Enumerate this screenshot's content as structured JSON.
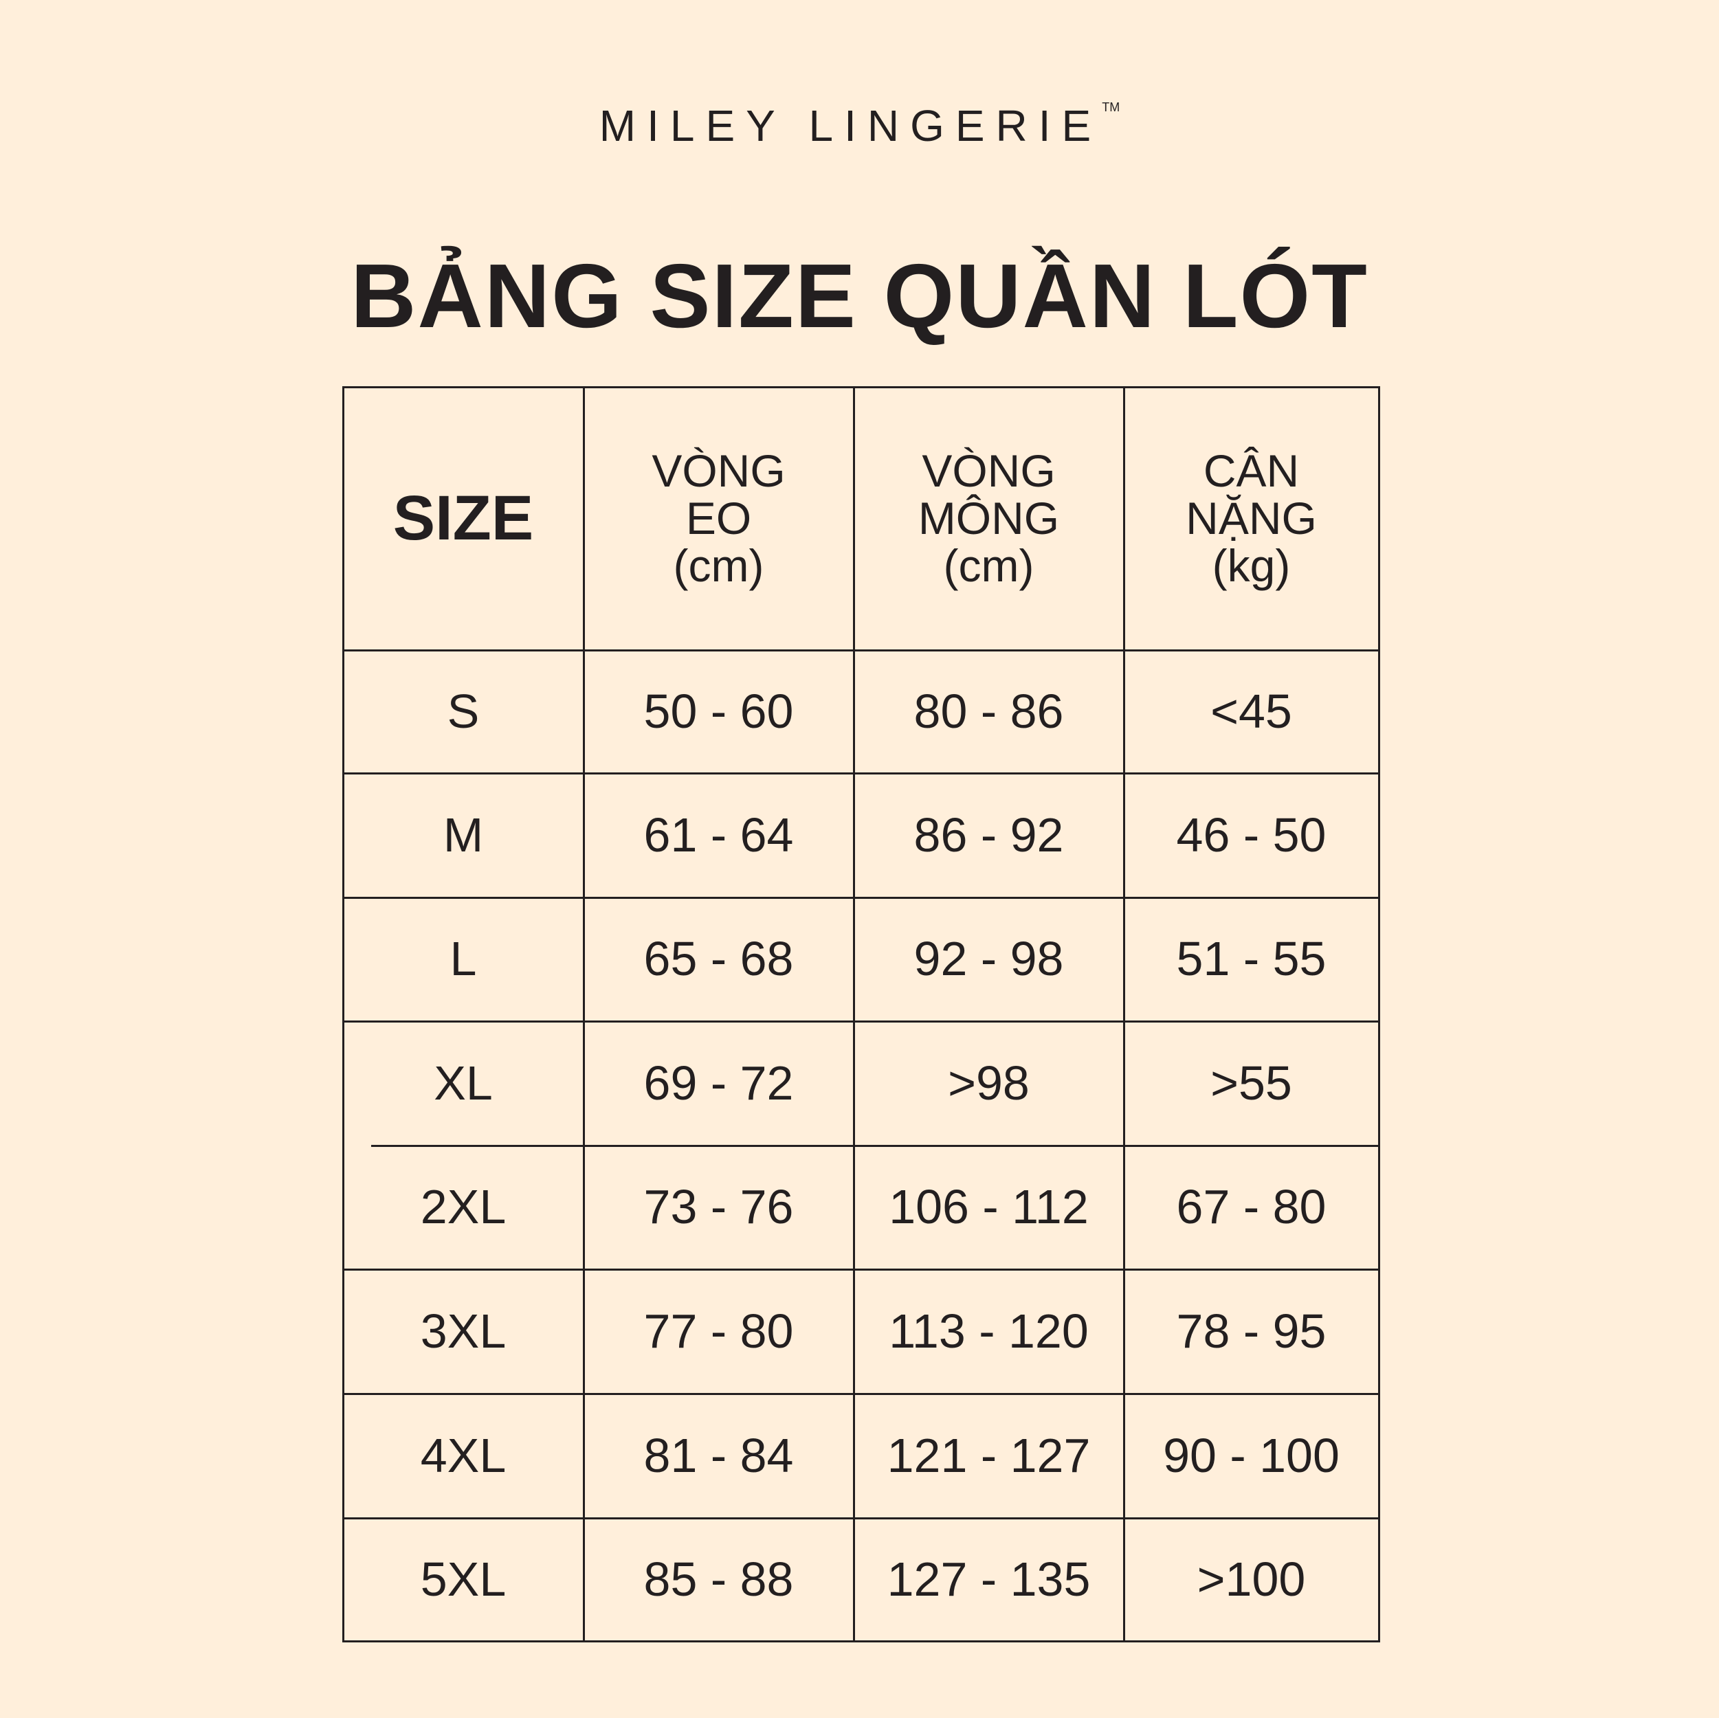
{
  "brand": {
    "name": "MILEY LINGERIE",
    "trademark": "TM"
  },
  "title": "BẢNG SIZE QUẦN LÓT",
  "table": {
    "headers": [
      "SIZE",
      "VÒNG\nEO\n(cm)",
      "VÒNG\nMÔNG\n(cm)",
      "CÂN\nNẶNG\n(kg)"
    ],
    "rows": [
      [
        "S",
        "50 - 60",
        "80 - 86",
        "<45"
      ],
      [
        "M",
        "61 - 64",
        "86 - 92",
        "46 - 50"
      ],
      [
        "L",
        "65 - 68",
        "92 - 98",
        "51 - 55"
      ],
      [
        "XL",
        "69 - 72",
        ">98",
        ">55"
      ],
      [
        "2XL",
        "73 - 76",
        "106 - 112",
        "67 - 80"
      ],
      [
        "3XL",
        "77 - 80",
        "113 - 120",
        "78 - 95"
      ],
      [
        "4XL",
        "81 - 84",
        "121 - 127",
        "90 - 100"
      ],
      [
        "5XL",
        "85 - 88",
        "127 - 135",
        ">100"
      ]
    ]
  },
  "colors": {
    "background": "#FFEFDB",
    "text": "#231f20"
  }
}
